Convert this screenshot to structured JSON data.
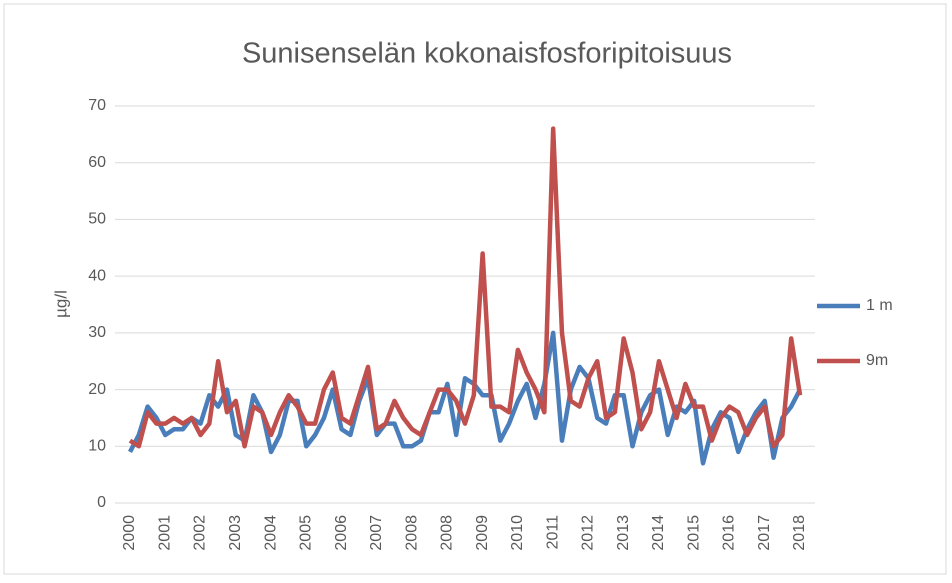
{
  "chart_data": {
    "type": "line",
    "title": "Sunisenselän kokonaisfosforipitoisuus",
    "y_label": "µg/l",
    "categories": [
      "2000",
      null,
      null,
      null,
      "2001",
      null,
      null,
      null,
      "2002",
      null,
      null,
      null,
      "2003",
      null,
      null,
      null,
      "2004",
      null,
      null,
      null,
      "2005",
      null,
      null,
      null,
      "2006",
      null,
      null,
      null,
      "2007",
      null,
      null,
      null,
      "2008",
      null,
      null,
      null,
      "2008",
      null,
      null,
      null,
      "2009",
      null,
      null,
      null,
      "2010",
      null,
      null,
      null,
      "2011",
      null,
      null,
      null,
      "2012",
      null,
      null,
      null,
      "2013",
      null,
      null,
      null,
      "2014",
      null,
      null,
      null,
      "2015",
      null,
      null,
      null,
      "2016",
      null,
      null,
      null,
      "2017",
      null,
      null,
      null,
      "2018"
    ],
    "series": [
      {
        "name": "1 m",
        "color": "#4a7ebb",
        "values": [
          9,
          12,
          17,
          15,
          12,
          13,
          13,
          15,
          14,
          19,
          17,
          20,
          12,
          11,
          19,
          16,
          9,
          12,
          18,
          18,
          10,
          12,
          15,
          20,
          13,
          12,
          18,
          22,
          12,
          14,
          14,
          10,
          10,
          11,
          16,
          16,
          21,
          12,
          22,
          21,
          19,
          19,
          11,
          14,
          18,
          21,
          15,
          21,
          30,
          11,
          20,
          24,
          22,
          15,
          14,
          19,
          19,
          10,
          16,
          19,
          20,
          12,
          17,
          16,
          18,
          7,
          13,
          16,
          15,
          9,
          13,
          16,
          18,
          8,
          15,
          17,
          20
        ]
      },
      {
        "name": "9m",
        "color": "#c0504d",
        "values": [
          11,
          10,
          16,
          14,
          14,
          15,
          14,
          15,
          12,
          14,
          25,
          16,
          18,
          10,
          17,
          16,
          12,
          16,
          19,
          17,
          14,
          14,
          20,
          23,
          15,
          14,
          19,
          24,
          13,
          14,
          18,
          15,
          13,
          12,
          16,
          20,
          20,
          18,
          14,
          19,
          44,
          17,
          17,
          16,
          27,
          23,
          20,
          16,
          66,
          30,
          18,
          17,
          22,
          25,
          15,
          16,
          29,
          23,
          13,
          16,
          25,
          20,
          15,
          21,
          17,
          17,
          11,
          15,
          17,
          16,
          12,
          15,
          17,
          10,
          12,
          29,
          19
        ]
      }
    ],
    "ylim": [
      0,
      70
    ],
    "yticks": [
      0,
      10,
      20,
      30,
      40,
      50,
      60,
      70
    ],
    "grid": true,
    "legend": "right"
  }
}
